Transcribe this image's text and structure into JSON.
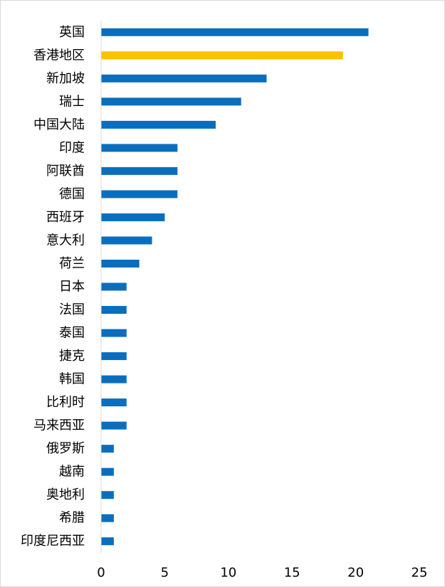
{
  "chart_data": {
    "type": "bar",
    "orientation": "horizontal",
    "title": "",
    "xlabel": "",
    "ylabel": "",
    "xlim": [
      0,
      25
    ],
    "xticks": [
      0,
      5,
      10,
      15,
      20,
      25
    ],
    "grid": false,
    "legend": "none",
    "colors": {
      "default": "#0a6ebd",
      "highlight": "#ffc000",
      "axis": "#d9d9d9"
    },
    "highlight_index": 1,
    "categories": [
      "英国",
      "香港地区",
      "新加坡",
      "瑞士",
      "中国大陆",
      "印度",
      "阿联酋",
      "德国",
      "西班牙",
      "意大利",
      "荷兰",
      "日本",
      "法国",
      "泰国",
      "捷克",
      "韩国",
      "比利时",
      "马来西亚",
      "俄罗斯",
      "越南",
      "奥地利",
      "希腊",
      "印度尼西亚"
    ],
    "values": [
      21,
      19,
      13,
      11,
      9,
      6,
      6,
      6,
      5,
      4,
      3,
      2,
      2,
      2,
      2,
      2,
      2,
      2,
      1,
      1,
      1,
      1,
      1
    ]
  }
}
